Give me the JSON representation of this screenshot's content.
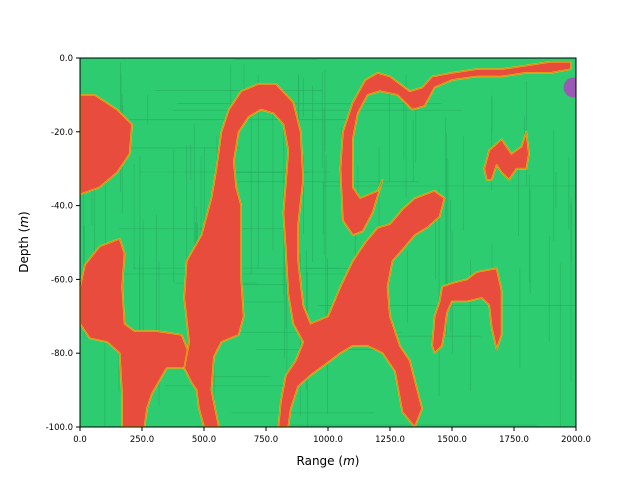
{
  "chart_data": {
    "type": "heatmap",
    "title": "",
    "xlabel_text": "Range",
    "xlabel_unit": "m",
    "ylabel_text": "Depth",
    "ylabel_unit": "m",
    "xlim": [
      0,
      2000
    ],
    "ylim": [
      -100,
      0
    ],
    "x_ticks": [
      0,
      250,
      500,
      750,
      1000,
      1250,
      1500,
      1750,
      2000
    ],
    "x_tick_labels": [
      "0.0",
      "250.0",
      "500.0",
      "750.0",
      "1000.0",
      "1250.0",
      "1500.0",
      "1750.0",
      "2000.0"
    ],
    "y_ticks": [
      0,
      -20,
      -40,
      -60,
      -80,
      -100
    ],
    "y_tick_labels": [
      "0.0",
      "-20.0",
      "-40.0",
      "-60.0",
      "-80.0",
      "-100.0"
    ],
    "grid": false,
    "colors": {
      "background_field": "#2ecc71",
      "channel_fill": "#e74c3c",
      "channel_dark": "#c0392b",
      "channel_edge": "#f1c40f",
      "mesh_line": "#27ae60",
      "source_marker": "#9b59b6"
    },
    "source_marker": {
      "x": 1990,
      "y": -8
    },
    "regions": [
      {
        "name": "left-lens",
        "points": [
          [
            0,
            -10
          ],
          [
            60,
            -10
          ],
          [
            150,
            -14
          ],
          [
            210,
            -18
          ],
          [
            200,
            -26
          ],
          [
            150,
            -31
          ],
          [
            80,
            -35
          ],
          [
            0,
            -37
          ]
        ]
      },
      {
        "name": "left-lower-mass",
        "points": [
          [
            0,
            -62
          ],
          [
            20,
            -56
          ],
          [
            80,
            -51
          ],
          [
            160,
            -49
          ],
          [
            180,
            -53
          ],
          [
            170,
            -62
          ],
          [
            180,
            -72
          ],
          [
            220,
            -74
          ],
          [
            310,
            -74
          ],
          [
            410,
            -75
          ],
          [
            440,
            -80
          ],
          [
            430,
            -85
          ],
          [
            420,
            -84
          ],
          [
            350,
            -84
          ],
          [
            290,
            -91
          ],
          [
            270,
            -95
          ],
          [
            260,
            -100
          ],
          [
            170,
            -100
          ],
          [
            170,
            -92
          ],
          [
            160,
            -80
          ],
          [
            110,
            -77
          ],
          [
            40,
            -76
          ],
          [
            0,
            -72
          ]
        ]
      },
      {
        "name": "central-column",
        "points": [
          [
            420,
            -84
          ],
          [
            440,
            -77
          ],
          [
            420,
            -65
          ],
          [
            430,
            -55
          ],
          [
            490,
            -48
          ],
          [
            530,
            -38
          ],
          [
            550,
            -30
          ],
          [
            570,
            -20
          ],
          [
            600,
            -14
          ],
          [
            650,
            -9
          ],
          [
            720,
            -7
          ],
          [
            790,
            -7
          ],
          [
            860,
            -12
          ],
          [
            890,
            -20
          ],
          [
            900,
            -33
          ],
          [
            880,
            -45
          ],
          [
            880,
            -55
          ],
          [
            900,
            -67
          ],
          [
            930,
            -72
          ],
          [
            1000,
            -70
          ],
          [
            1050,
            -62
          ],
          [
            1100,
            -55
          ],
          [
            1150,
            -50
          ],
          [
            1200,
            -46
          ],
          [
            1250,
            -45
          ],
          [
            1300,
            -41
          ],
          [
            1350,
            -38
          ],
          [
            1430,
            -36
          ],
          [
            1470,
            -38
          ],
          [
            1450,
            -43
          ],
          [
            1400,
            -46
          ],
          [
            1350,
            -48
          ],
          [
            1300,
            -52
          ],
          [
            1260,
            -55
          ],
          [
            1240,
            -62
          ],
          [
            1250,
            -70
          ],
          [
            1290,
            -78
          ],
          [
            1330,
            -82
          ],
          [
            1360,
            -90
          ],
          [
            1380,
            -95
          ],
          [
            1350,
            -100
          ],
          [
            1300,
            -96
          ],
          [
            1270,
            -85
          ],
          [
            1220,
            -80
          ],
          [
            1160,
            -78
          ],
          [
            1100,
            -78
          ],
          [
            1050,
            -80
          ],
          [
            990,
            -83
          ],
          [
            930,
            -86
          ],
          [
            880,
            -89
          ],
          [
            850,
            -95
          ],
          [
            840,
            -100
          ],
          [
            800,
            -100
          ],
          [
            810,
            -93
          ],
          [
            830,
            -86
          ],
          [
            870,
            -82
          ],
          [
            900,
            -77
          ],
          [
            860,
            -72
          ],
          [
            840,
            -64
          ],
          [
            830,
            -52
          ],
          [
            820,
            -42
          ],
          [
            830,
            -34
          ],
          [
            840,
            -25
          ],
          [
            820,
            -18
          ],
          [
            780,
            -15
          ],
          [
            730,
            -14
          ],
          [
            680,
            -16
          ],
          [
            640,
            -20
          ],
          [
            620,
            -28
          ],
          [
            630,
            -35
          ],
          [
            650,
            -40
          ],
          [
            650,
            -48
          ],
          [
            650,
            -60
          ],
          [
            660,
            -70
          ],
          [
            640,
            -75
          ],
          [
            570,
            -77
          ],
          [
            540,
            -81
          ],
          [
            530,
            -90
          ],
          [
            560,
            -100
          ],
          [
            500,
            -100
          ],
          [
            480,
            -95
          ],
          [
            470,
            -90
          ],
          [
            450,
            -88
          ]
        ]
      },
      {
        "name": "upper-arch",
        "points": [
          [
            1050,
            -30
          ],
          [
            1060,
            -20
          ],
          [
            1100,
            -12
          ],
          [
            1150,
            -6
          ],
          [
            1200,
            -4
          ],
          [
            1250,
            -5
          ],
          [
            1330,
            -9
          ],
          [
            1380,
            -8
          ],
          [
            1420,
            -5
          ],
          [
            1500,
            -4
          ],
          [
            1600,
            -3
          ],
          [
            1700,
            -3
          ],
          [
            1800,
            -2
          ],
          [
            1900,
            -1
          ],
          [
            1980,
            -1
          ],
          [
            1980,
            -3
          ],
          [
            1900,
            -4
          ],
          [
            1800,
            -4
          ],
          [
            1700,
            -5
          ],
          [
            1600,
            -5
          ],
          [
            1500,
            -6
          ],
          [
            1430,
            -8
          ],
          [
            1390,
            -13
          ],
          [
            1340,
            -14
          ],
          [
            1280,
            -10
          ],
          [
            1210,
            -9
          ],
          [
            1160,
            -10
          ],
          [
            1120,
            -15
          ],
          [
            1100,
            -22
          ],
          [
            1100,
            -35
          ],
          [
            1130,
            -38
          ],
          [
            1200,
            -36
          ],
          [
            1220,
            -33
          ],
          [
            1180,
            -42
          ],
          [
            1140,
            -47
          ],
          [
            1100,
            -48
          ],
          [
            1060,
            -44
          ]
        ]
      },
      {
        "name": "right-lower-loop",
        "points": [
          [
            1460,
            -62
          ],
          [
            1500,
            -61
          ],
          [
            1560,
            -60
          ],
          [
            1600,
            -58
          ],
          [
            1680,
            -57
          ],
          [
            1700,
            -63
          ],
          [
            1700,
            -75
          ],
          [
            1680,
            -79
          ],
          [
            1660,
            -73
          ],
          [
            1650,
            -67
          ],
          [
            1620,
            -65
          ],
          [
            1560,
            -66
          ],
          [
            1500,
            -66
          ],
          [
            1480,
            -69
          ],
          [
            1470,
            -74
          ],
          [
            1460,
            -78
          ],
          [
            1430,
            -80
          ],
          [
            1420,
            -78
          ],
          [
            1430,
            -70
          ],
          [
            1450,
            -66
          ]
        ]
      },
      {
        "name": "right-upper-cells",
        "points": [
          [
            1630,
            -30
          ],
          [
            1650,
            -25
          ],
          [
            1700,
            -22
          ],
          [
            1740,
            -26
          ],
          [
            1780,
            -24
          ],
          [
            1800,
            -20
          ],
          [
            1810,
            -26
          ],
          [
            1800,
            -30
          ],
          [
            1760,
            -30
          ],
          [
            1730,
            -33
          ],
          [
            1700,
            -31
          ],
          [
            1680,
            -29
          ],
          [
            1660,
            -33
          ],
          [
            1640,
            -33
          ]
        ]
      }
    ]
  }
}
